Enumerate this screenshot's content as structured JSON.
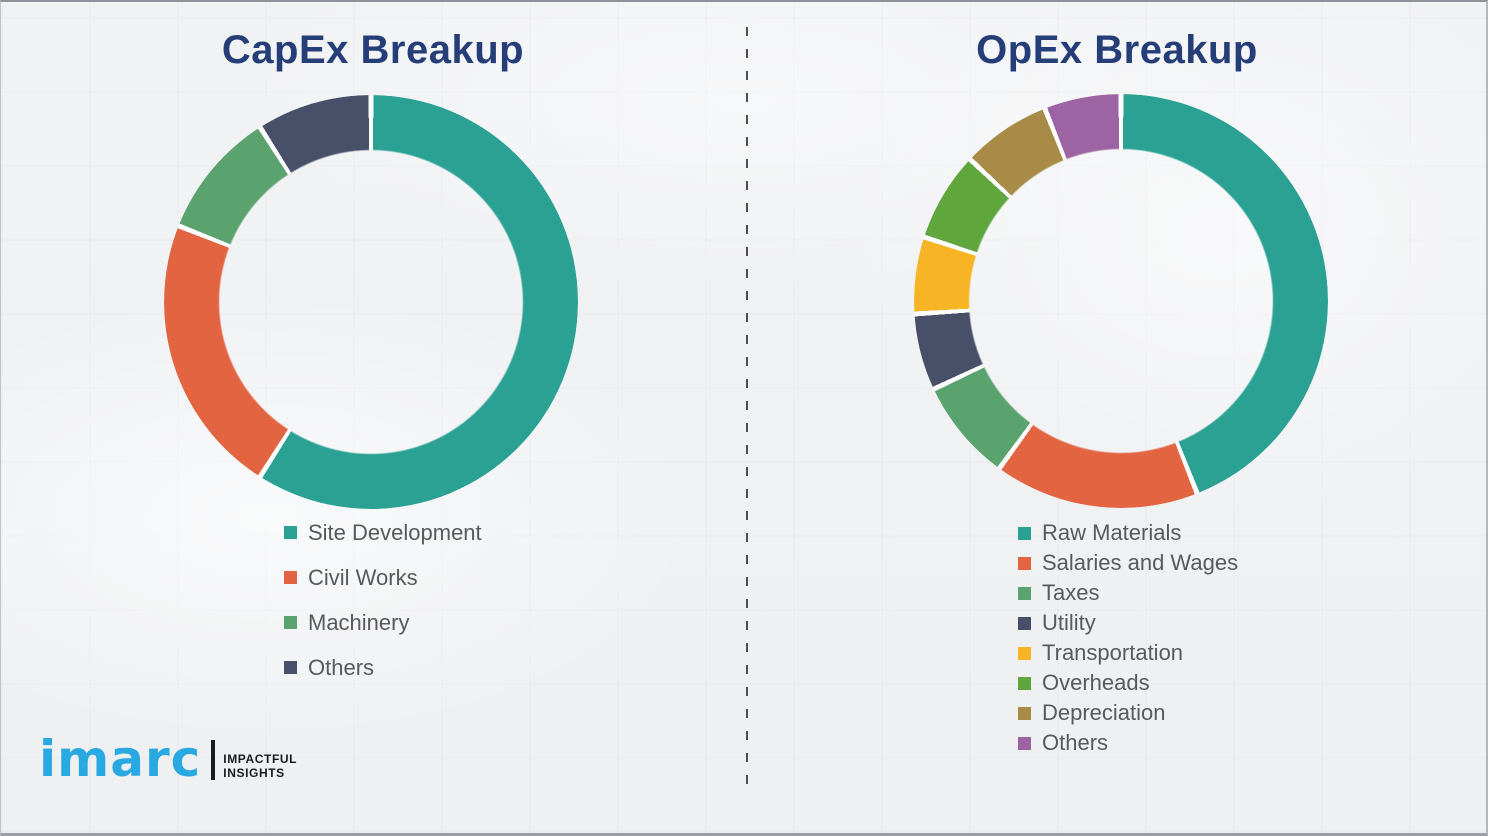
{
  "titles": {
    "left": "CapEx Breakup",
    "right": "OpEx Breakup"
  },
  "colors": {
    "title_navy": "#263E78",
    "legend_text_gray": "#58595B",
    "background": "#f0f1f3",
    "divider_dash": "#4a4f55",
    "logo_blue": "#29A9E1",
    "logo_black": "#1a1a1a"
  },
  "logo": {
    "wordmark": "imarc",
    "tagline_line1": "IMPACTFUL",
    "tagline_line2": "INSIGHTS"
  },
  "chart_data": [
    {
      "type": "pie",
      "variant": "donut",
      "title": "CapEx Breakup",
      "direction": "clockwise",
      "start_angle_deg": 0,
      "inner_radius_ratio": 0.73,
      "gap_deg": 1.4,
      "legend_position": "below-left",
      "values_are_estimated_percent": true,
      "segments": [
        {
          "label": "Site Development",
          "value": 59,
          "color": "#2AA193"
        },
        {
          "label": "Civil Works",
          "value": 22,
          "color": "#E26441"
        },
        {
          "label": "Machinery",
          "value": 10,
          "color": "#5AA26E"
        },
        {
          "label": "Others",
          "value": 9,
          "color": "#474F69"
        }
      ]
    },
    {
      "type": "pie",
      "variant": "donut",
      "title": "OpEx Breakup",
      "direction": "clockwise",
      "start_angle_deg": 0,
      "inner_radius_ratio": 0.73,
      "gap_deg": 1.4,
      "legend_position": "below-left",
      "values_are_estimated_percent": true,
      "segments": [
        {
          "label": "Raw Materials",
          "value": 44,
          "color": "#2AA193"
        },
        {
          "label": "Salaries and Wages",
          "value": 16,
          "color": "#E26441"
        },
        {
          "label": "Taxes",
          "value": 8,
          "color": "#5AA26E"
        },
        {
          "label": "Utility",
          "value": 6,
          "color": "#474F69"
        },
        {
          "label": "Transportation",
          "value": 6,
          "color": "#F7B525"
        },
        {
          "label": "Overheads",
          "value": 7,
          "color": "#5FA73C"
        },
        {
          "label": "Depreciation",
          "value": 7,
          "color": "#A78B47"
        },
        {
          "label": "Others",
          "value": 6,
          "color": "#9D64A4"
        }
      ]
    }
  ]
}
